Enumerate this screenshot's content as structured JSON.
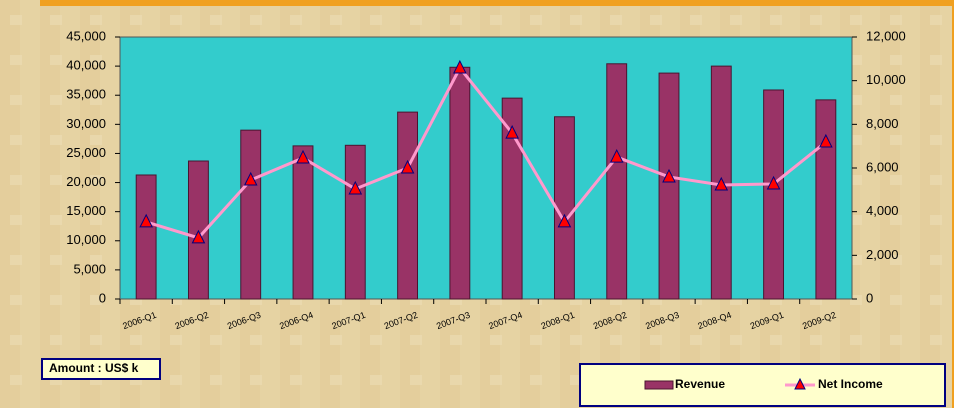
{
  "chart_data": {
    "type": "bar_line",
    "annotation": "Amount : US$ k",
    "categories": [
      "2006-Q1",
      "2006-Q2",
      "2006-Q3",
      "2006-Q4",
      "2007-Q1",
      "2007-Q2",
      "2007-Q3",
      "2007-Q4",
      "2008-Q1",
      "2008-Q2",
      "2008-Q3",
      "2008-Q4",
      "2009-Q1",
      "2009-Q2"
    ],
    "series": [
      {
        "name": "Revenue",
        "type": "bar",
        "color": "#993366",
        "values": [
          21300,
          23700,
          29000,
          26300,
          26400,
          32100,
          39800,
          34500,
          31300,
          40400,
          38800,
          40000,
          35900,
          34200
        ]
      },
      {
        "name": "Net Income",
        "type": "line",
        "axis": "y2",
        "color": "#ff99cc",
        "marker_color": "#ff0000",
        "values": [
          3530,
          2800,
          5450,
          6460,
          5040,
          6000,
          10580,
          7600,
          3530,
          6500,
          5590,
          5220,
          5270,
          7190
        ]
      }
    ],
    "ylim": [
      0,
      45000
    ],
    "yticks": [
      0,
      {
        "value": 5000,
        "label": "5,000"
      },
      {
        "value": 10000,
        "label": "10,000"
      },
      {
        "value": 15000,
        "label": "15,000"
      },
      {
        "value": 20000,
        "label": "20,000"
      },
      {
        "value": 25000,
        "label": "25,000"
      },
      {
        "value": 30000,
        "label": "30,000"
      },
      {
        "value": 35000,
        "label": "35,000"
      },
      {
        "value": 40000,
        "label": "40,000"
      },
      {
        "value": 45000,
        "label": "45,000"
      }
    ],
    "y2lim": [
      0,
      12000
    ],
    "y2ticks": [
      0,
      {
        "value": 2000,
        "label": "2,000"
      },
      {
        "value": 4000,
        "label": "4,000"
      },
      {
        "value": 6000,
        "label": "6,000"
      },
      {
        "value": 8000,
        "label": "8,000"
      },
      {
        "value": 10000,
        "label": "10,000"
      },
      {
        "value": 12000,
        "label": "12,000"
      }
    ],
    "plot_background": "#33cccc",
    "legend": "bottom-right"
  }
}
